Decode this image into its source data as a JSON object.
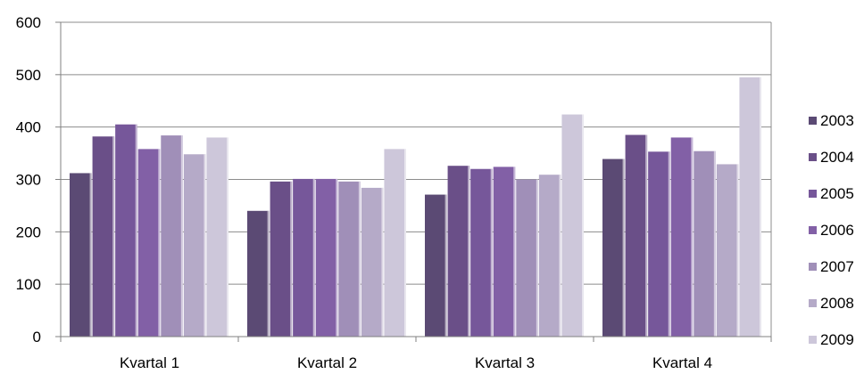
{
  "chart_data": {
    "type": "bar",
    "title": "",
    "xlabel": "",
    "ylabel": "",
    "ylim": [
      0,
      600
    ],
    "yticks": [
      0,
      100,
      200,
      300,
      400,
      500,
      600
    ],
    "grid": true,
    "legend_position": "right",
    "categories": [
      "Kvartal 1",
      "Kvartal 2",
      "Kvartal 3",
      "Kvartal 4"
    ],
    "series": [
      {
        "name": "2003",
        "color": "#5b4a74",
        "values": [
          312,
          240,
          271,
          339
        ]
      },
      {
        "name": "2004",
        "color": "#6a4f88",
        "values": [
          382,
          296,
          326,
          385
        ]
      },
      {
        "name": "2005",
        "color": "#76579a",
        "values": [
          405,
          301,
          320,
          353
        ]
      },
      {
        "name": "2006",
        "color": "#8260a6",
        "values": [
          358,
          301,
          324,
          380
        ]
      },
      {
        "name": "2007",
        "color": "#a08fb8",
        "values": [
          384,
          296,
          300,
          354
        ]
      },
      {
        "name": "2008",
        "color": "#b5aac8",
        "values": [
          348,
          284,
          309,
          329
        ]
      },
      {
        "name": "2009",
        "color": "#cdc7da",
        "values": [
          380,
          358,
          424,
          495
        ]
      }
    ]
  }
}
